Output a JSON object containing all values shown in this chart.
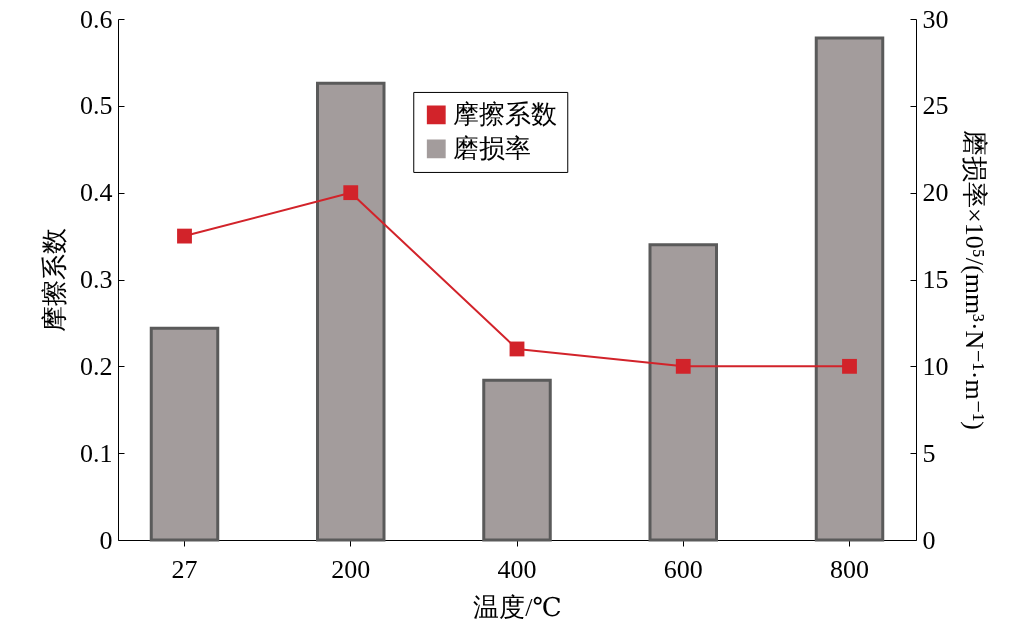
{
  "chart_data": {
    "type": "bar",
    "xlabel": "温度/℃",
    "ylabel": "摩擦系数",
    "y2label": "磨损率×10⁵/(mm³·N⁻¹·m⁻¹)",
    "categories": [
      "27",
      "200",
      "400",
      "600",
      "800"
    ],
    "series": [
      {
        "name": "摩擦系数",
        "type": "line",
        "color": "#d2232a",
        "marker": "square",
        "values": [
          0.35,
          0.4,
          0.22,
          0.2,
          0.2
        ]
      },
      {
        "name": "磨损率",
        "color": "#a39c9c",
        "axis": "y2",
        "values": [
          12.2,
          26.3,
          9.2,
          17.0,
          28.9
        ]
      }
    ],
    "ylim": [
      0,
      0.6
    ],
    "yticks": [
      0,
      0.1,
      0.2,
      0.3,
      0.4,
      0.5,
      0.6
    ],
    "y2lim": [
      0,
      30
    ],
    "y2ticks": [
      0,
      5,
      10,
      15,
      20,
      25,
      30
    ],
    "legend": "top",
    "grid": false
  }
}
